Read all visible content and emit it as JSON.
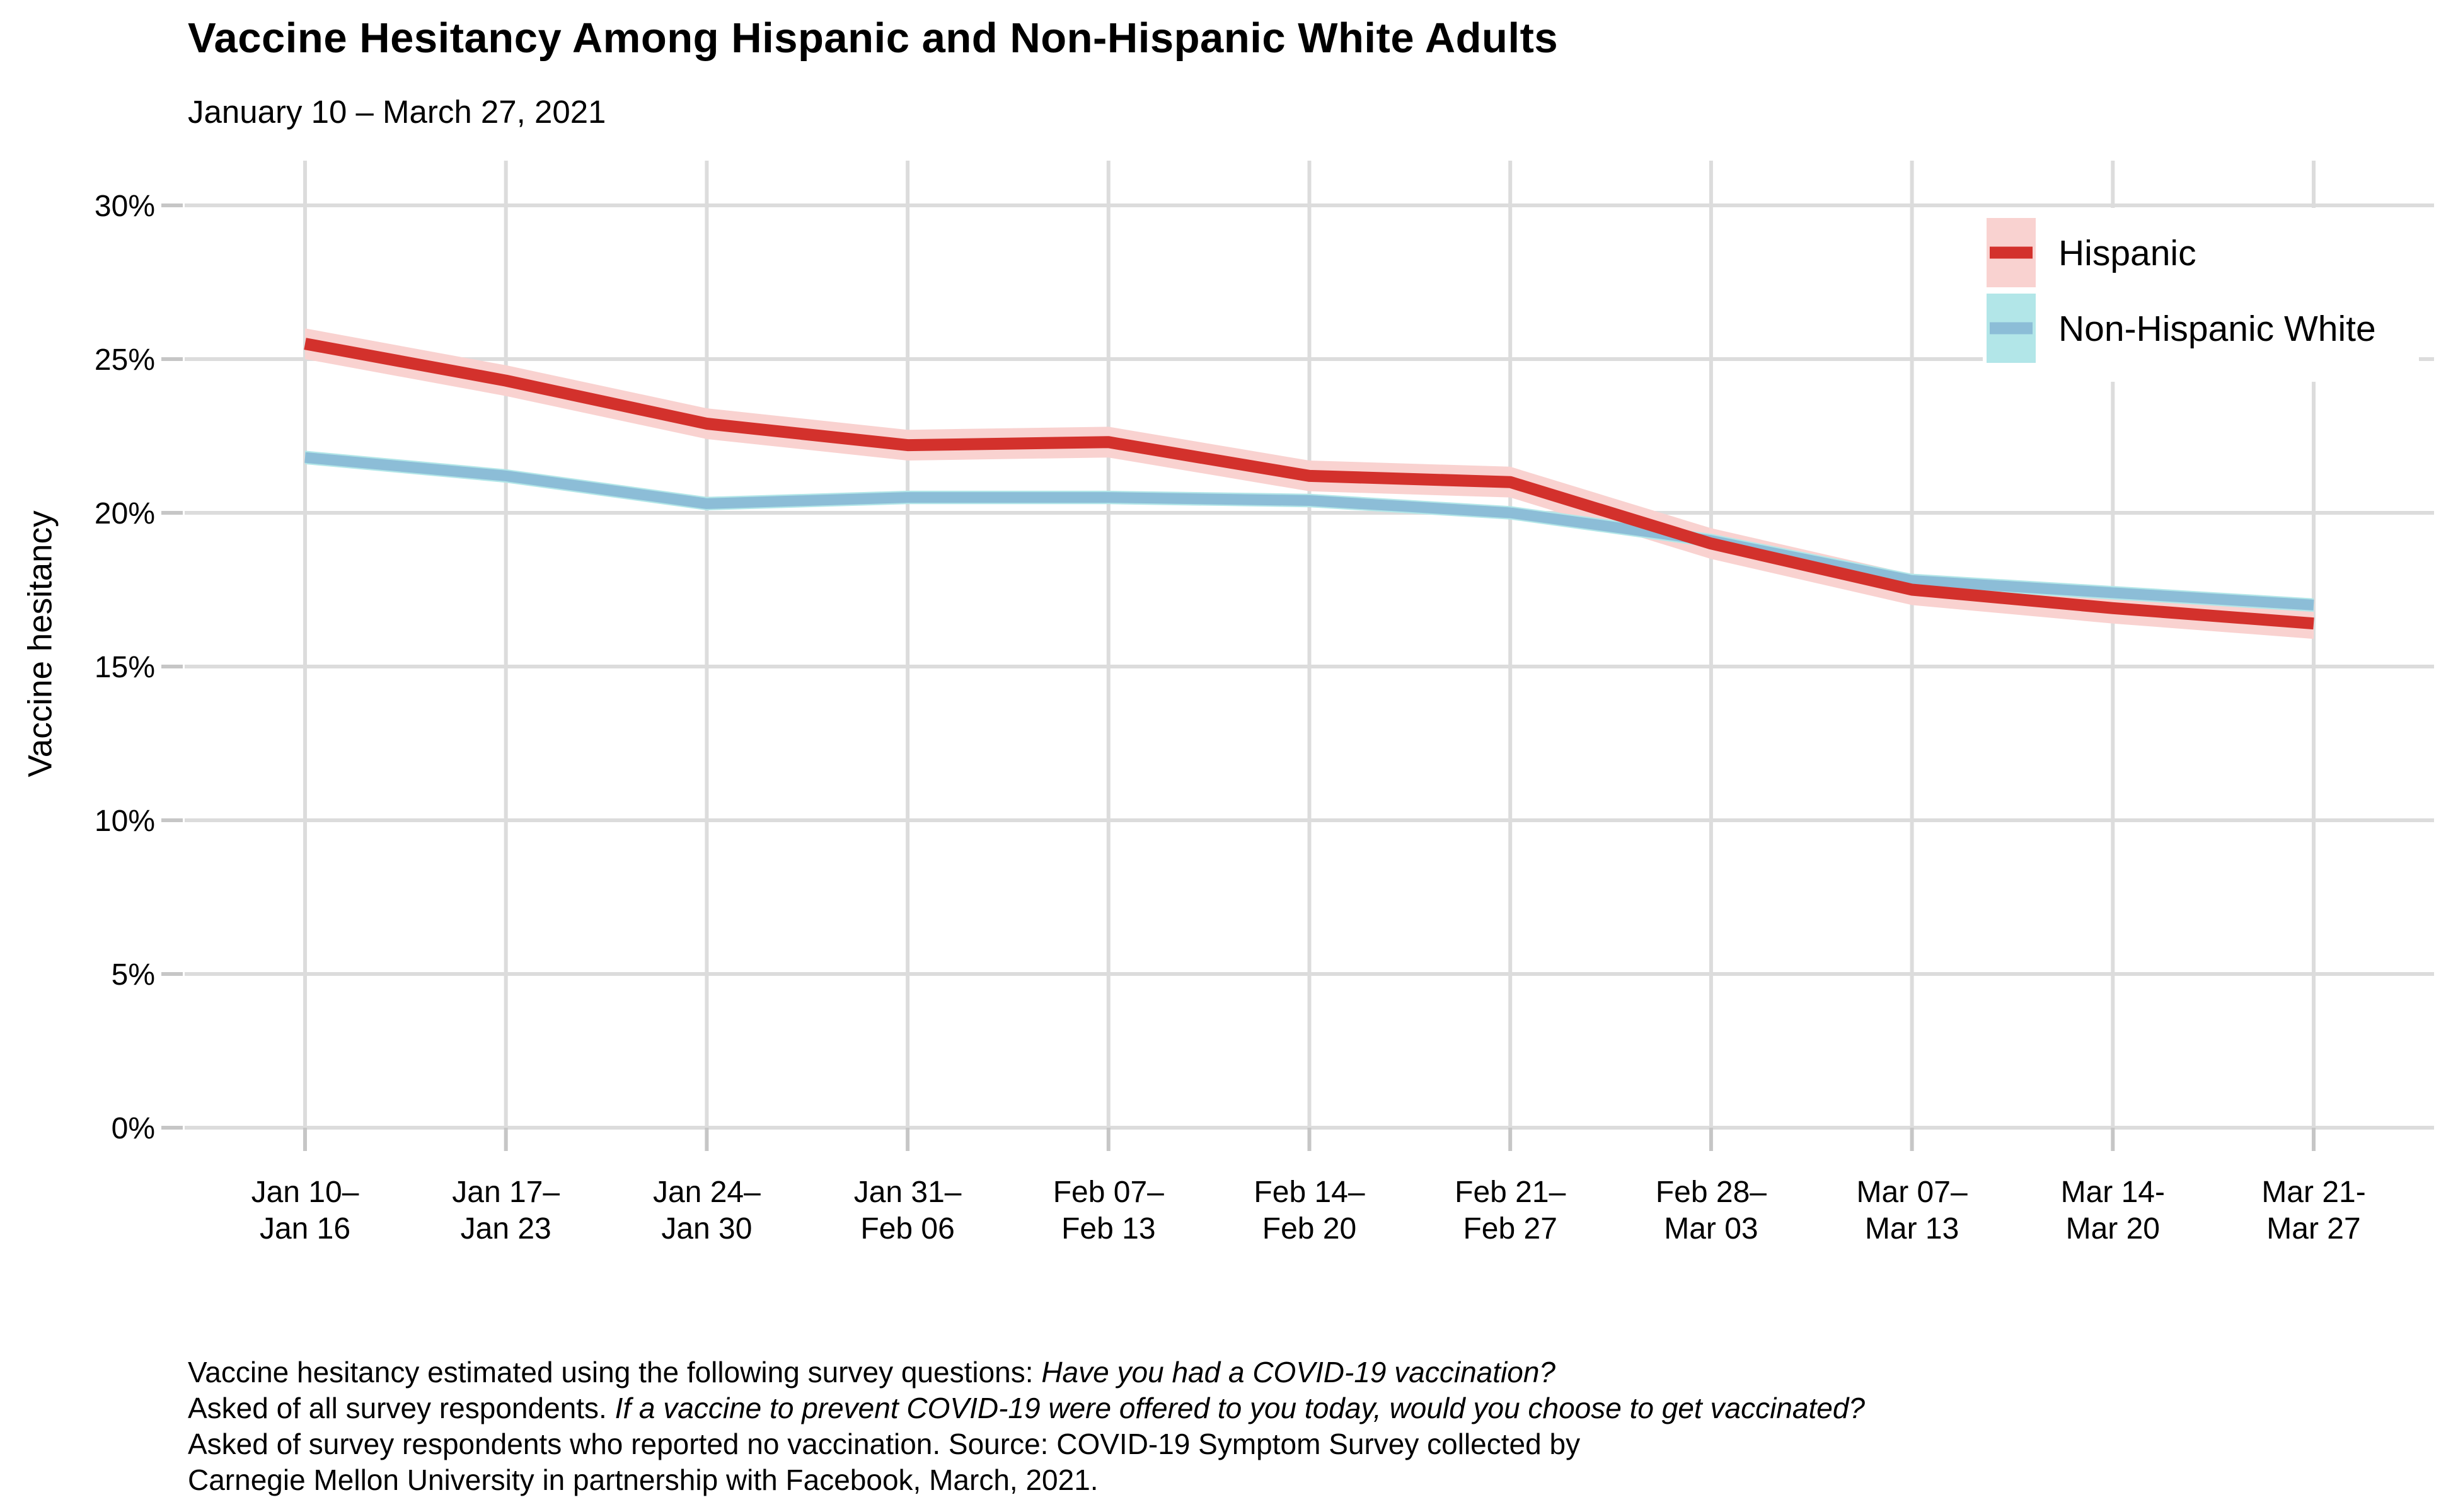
{
  "title": "Vaccine Hesitancy Among Hispanic and Non-Hispanic White Adults",
  "subtitle": "January 10 – March 27, 2021",
  "caption": {
    "lines": [
      [
        {
          "t": "Vaccine hesitancy estimated using the following survey questions: ",
          "i": false
        },
        {
          "t": "Have you had a COVID-19 vaccination?",
          "i": true
        }
      ],
      [
        {
          "t": "Asked of all survey respondents. ",
          "i": false
        },
        {
          "t": "If a vaccine to prevent COVID-19 were offered to you today, would you choose to get vaccinated?",
          "i": true
        }
      ],
      [
        {
          "t": "Asked of survey respondents who reported no vaccination. Source: COVID-19 Symptom Survey collected by",
          "i": false
        }
      ],
      [
        {
          "t": "Carnegie Mellon University in partnership with Facebook, March, 2021.",
          "i": false
        }
      ]
    ]
  },
  "legend": {
    "position": "top-right-inside",
    "entries": [
      {
        "label": "Hispanic"
      },
      {
        "label": "Non-Hispanic White"
      }
    ]
  },
  "colors": {
    "hispanic_line": "#d3312c",
    "hispanic_ribbon": "#f9d2d0",
    "nhw_line": "#8cbdd7",
    "nhw_ribbon": "#b2e6e8",
    "gridline": "#dcdcdc",
    "tick": "#c6c6c6",
    "background": "#ffffff",
    "text": "#000000"
  },
  "chart_data": {
    "type": "line",
    "title": "Vaccine Hesitancy Among Hispanic and Non-Hispanic White Adults",
    "subtitle": "January 10 – March 27, 2021",
    "ylabel": "Vaccine hesitancy",
    "xlabel": "",
    "grid": true,
    "ylim": [
      0,
      31.5
    ],
    "yticks": [
      {
        "value": 0,
        "label": "0%"
      },
      {
        "value": 5,
        "label": "5%"
      },
      {
        "value": 10,
        "label": "10%"
      },
      {
        "value": 15,
        "label": "15%"
      },
      {
        "value": 20,
        "label": "20%"
      },
      {
        "value": 25,
        "label": "25%"
      },
      {
        "value": 30,
        "label": "30%"
      }
    ],
    "categories": [
      [
        "Jan 10–",
        "Jan 16"
      ],
      [
        "Jan 17–",
        "Jan 23"
      ],
      [
        "Jan 24–",
        "Jan 30"
      ],
      [
        "Jan 31–",
        "Feb 06"
      ],
      [
        "Feb 07–",
        "Feb 13"
      ],
      [
        "Feb 14–",
        "Feb 20"
      ],
      [
        "Feb 21–",
        "Feb 27"
      ],
      [
        "Feb 28–",
        "Mar 03"
      ],
      [
        "Mar 07–",
        "Mar 13"
      ],
      [
        "Mar 14-",
        "Mar 20"
      ],
      [
        "Mar 21-",
        "Mar 27"
      ]
    ],
    "series": [
      {
        "name": "Hispanic",
        "color": "#d3312c",
        "ribbon_color": "#f9d2d0",
        "ci_halfwidth": 0.5,
        "values": [
          25.5,
          24.3,
          22.9,
          22.2,
          22.3,
          21.2,
          21.0,
          19.0,
          17.5,
          16.9,
          16.4
        ]
      },
      {
        "name": "Non-Hispanic White",
        "color": "#8cbdd7",
        "ribbon_color": "#b2e6e8",
        "ci_halfwidth": 0.22,
        "values": [
          21.8,
          21.2,
          20.3,
          20.5,
          20.5,
          20.4,
          20.0,
          19.1,
          17.8,
          17.4,
          17.0
        ]
      }
    ],
    "legend_position": "top-right inside panel"
  }
}
